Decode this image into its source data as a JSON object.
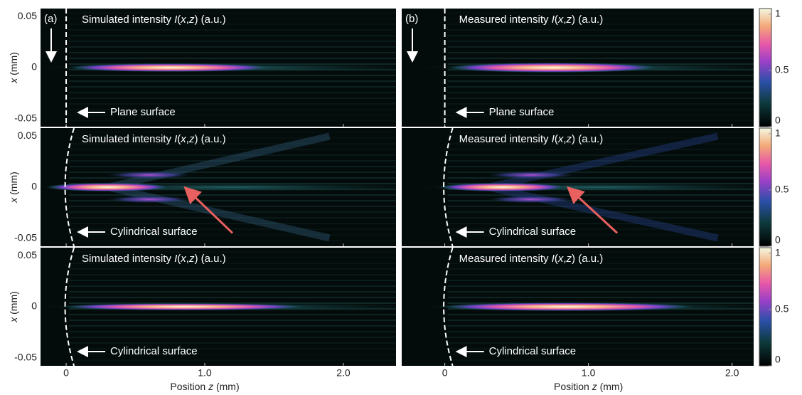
{
  "figure": {
    "y_label": [
      "x",
      " (mm)"
    ],
    "x_label": [
      "Position ",
      "z",
      " (mm)"
    ],
    "ylim": [
      -0.058,
      0.058
    ],
    "yticks": [
      0.05,
      0,
      -0.05
    ],
    "columns": [
      {
        "tag": "(a)",
        "xlim": [
          -0.185,
          2.38
        ],
        "xticks": [
          0,
          {
            "value": 1,
            "label": "1.0"
          },
          {
            "value": 2,
            "label": "2.0"
          }
        ],
        "title": [
          "Simulated intensity ",
          "I",
          "(",
          "x",
          ",",
          "z",
          ") (a.u.)"
        ]
      },
      {
        "tag": "(b)",
        "xlim": [
          -0.3,
          2.15
        ],
        "xticks": [
          0,
          {
            "value": 1,
            "label": "1.0"
          },
          {
            "value": 2,
            "label": "2.0"
          }
        ],
        "title": [
          "Measured intensity ",
          "I",
          "(",
          "x",
          ",",
          "z",
          ") (a.u.)"
        ]
      }
    ],
    "rows": [
      {
        "surface": "Plane surface"
      },
      {
        "surface": "Cylindrical surface"
      },
      {
        "surface": "Cylindrical surface"
      }
    ],
    "colorbar": {
      "lim": [
        0,
        1.05
      ],
      "ticks": [
        1,
        0.5,
        0
      ]
    }
  }
}
